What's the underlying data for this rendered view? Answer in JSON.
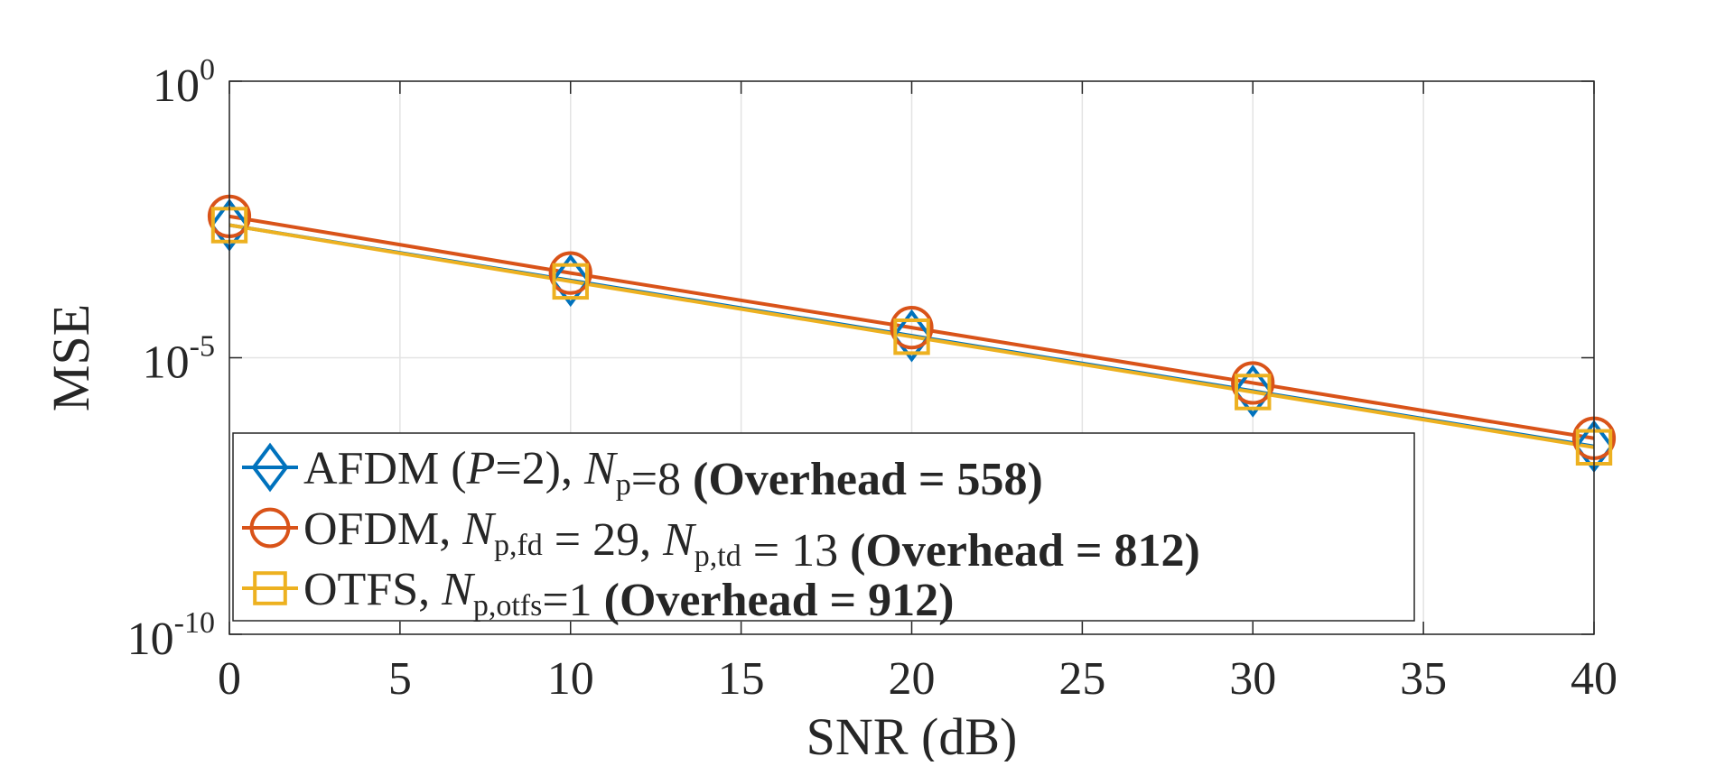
{
  "chart_data": {
    "type": "line",
    "title": "",
    "xlabel": "SNR (dB)",
    "ylabel": "MSE",
    "xlim": [
      0,
      40
    ],
    "ylim_log10": [
      -10,
      0
    ],
    "y_scale": "log",
    "grid": true,
    "x_ticks": [
      0,
      5,
      10,
      15,
      20,
      25,
      30,
      35,
      40
    ],
    "x_tick_labels": [
      "0",
      "5",
      "10",
      "15",
      "20",
      "25",
      "30",
      "35",
      "40"
    ],
    "y_ticks_log10": [
      0,
      -5,
      -10
    ],
    "y_tick_labels": [
      {
        "base": "10",
        "exp": "0"
      },
      {
        "base": "10",
        "exp": "-5"
      },
      {
        "base": "10",
        "exp": "-10"
      }
    ],
    "x": [
      0,
      10,
      20,
      30,
      40
    ],
    "legend_position": "bottom-left",
    "series": [
      {
        "name": "AFDM (P=2), Np=8 (Overhead = 558)",
        "color": "#0072BD",
        "marker": "diamond",
        "values": [
          0.0025,
          0.00025,
          2.5e-05,
          2.5e-06,
          2.5e-07
        ],
        "legend_parts": [
          {
            "text": "AFDM (",
            "style": "normal"
          },
          {
            "text": "P",
            "style": "italic"
          },
          {
            "text": "=2), ",
            "style": "normal"
          },
          {
            "text": "N",
            "style": "italic"
          },
          {
            "text": "p",
            "style": "sub"
          },
          {
            "text": "=8 ",
            "style": "normal"
          },
          {
            "text": "(Overhead = 558)",
            "style": "bold"
          }
        ]
      },
      {
        "name": "OFDM, Np,fd = 29, Np,td = 13 (Overhead = 812)",
        "color": "#D95319",
        "marker": "circle",
        "values": [
          0.0036,
          0.00034,
          3.5e-05,
          3.5e-06,
          3.5e-07
        ],
        "legend_parts": [
          {
            "text": "OFDM, ",
            "style": "normal"
          },
          {
            "text": "N",
            "style": "italic"
          },
          {
            "text": "p,fd",
            "style": "sub"
          },
          {
            "text": " = 29, ",
            "style": "normal"
          },
          {
            "text": "N",
            "style": "italic"
          },
          {
            "text": "p,td",
            "style": "sub"
          },
          {
            "text": " = 13 ",
            "style": "normal"
          },
          {
            "text": "(Overhead = 812)",
            "style": "bold"
          }
        ]
      },
      {
        "name": "OTFS, Np,otfs=1 (Overhead = 912)",
        "color": "#EDB120",
        "marker": "square",
        "values": [
          0.0025,
          0.00024,
          2.4e-05,
          2.4e-06,
          2.4e-07
        ],
        "legend_parts": [
          {
            "text": "OTFS, ",
            "style": "normal"
          },
          {
            "text": "N",
            "style": "italic"
          },
          {
            "text": "p,otfs",
            "style": "sub"
          },
          {
            "text": "=1 ",
            "style": "normal"
          },
          {
            "text": "(Overhead = 912)",
            "style": "bold"
          }
        ]
      }
    ]
  }
}
